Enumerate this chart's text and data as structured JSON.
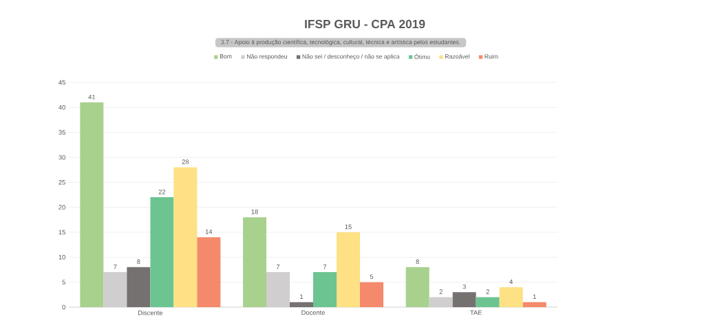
{
  "chart_data": {
    "type": "bar",
    "title": "IFSP GRU - CPA 2019",
    "subtitle": "3.7 - Apoio à produção científica, tecnológica, cultural, técnica e artística pelos estudantes.",
    "categories": [
      "Discente",
      "Docente",
      "TAE"
    ],
    "series": [
      {
        "name": "Bom",
        "color": "#a9d18e",
        "values": [
          41,
          18,
          8
        ]
      },
      {
        "name": "Não respondeu",
        "color": "#d0cece",
        "values": [
          7,
          7,
          2
        ]
      },
      {
        "name": "Não sei / desconheço / não se aplica",
        "color": "#767171",
        "values": [
          8,
          1,
          3
        ]
      },
      {
        "name": "Ótimo",
        "color": "#6cc490",
        "values": [
          22,
          7,
          2
        ]
      },
      {
        "name": "Razoável",
        "color": "#fde184",
        "values": [
          28,
          15,
          4
        ]
      },
      {
        "name": "Ruim",
        "color": "#f4896b",
        "values": [
          14,
          5,
          1
        ]
      }
    ],
    "ylim": [
      0,
      45
    ],
    "yticks": [
      0,
      5,
      10,
      15,
      20,
      25,
      30,
      35,
      40,
      45
    ],
    "grid": "y",
    "legend": "top",
    "data_labels": true
  }
}
